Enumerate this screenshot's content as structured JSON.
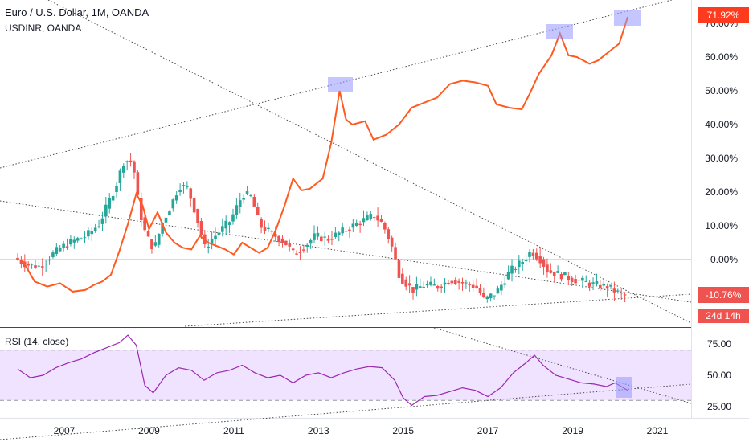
{
  "chart_data": [
    {
      "type": "candlestick",
      "title": "Euro / U.S. Dollar, 1M, OANDA",
      "comparison_series": "USDINR, OANDA",
      "y_axis": "percent",
      "ylim": [
        -20,
        72
      ],
      "y_ticks": [
        "70.00%",
        "60.00%",
        "50.00%",
        "40.00%",
        "30.00%",
        "20.00%",
        "10.00%",
        "0.00%"
      ],
      "x_ticks": [
        "2007",
        "2009",
        "2011",
        "2013",
        "2015",
        "2017",
        "2019",
        "2021"
      ],
      "eurusd_pct": [
        [
          2005.9,
          0.5
        ],
        [
          2006.2,
          -1.5
        ],
        [
          2006.5,
          -2.0
        ],
        [
          2006.8,
          1.5
        ],
        [
          2007.0,
          3.5
        ],
        [
          2007.3,
          5.5
        ],
        [
          2007.6,
          7.0
        ],
        [
          2007.9,
          10.5
        ],
        [
          2008.1,
          16.0
        ],
        [
          2008.3,
          22.0
        ],
        [
          2008.5,
          29.5
        ],
        [
          2008.7,
          29.0
        ],
        [
          2008.85,
          15.0
        ],
        [
          2009.0,
          7.5
        ],
        [
          2009.2,
          3.0
        ],
        [
          2009.4,
          11.0
        ],
        [
          2009.6,
          16.0
        ],
        [
          2009.8,
          22.0
        ],
        [
          2010.0,
          21.0
        ],
        [
          2010.2,
          13.0
        ],
        [
          2010.4,
          3.5
        ],
        [
          2010.6,
          6.5
        ],
        [
          2010.8,
          9.0
        ],
        [
          2011.0,
          11.5
        ],
        [
          2011.3,
          19.5
        ],
        [
          2011.5,
          18.5
        ],
        [
          2011.7,
          10.0
        ],
        [
          2012.0,
          7.5
        ],
        [
          2012.3,
          5.0
        ],
        [
          2012.5,
          1.5
        ],
        [
          2012.8,
          4.5
        ],
        [
          2013.0,
          7.0
        ],
        [
          2013.3,
          6.0
        ],
        [
          2013.6,
          8.0
        ],
        [
          2013.9,
          10.0
        ],
        [
          2014.2,
          12.0
        ],
        [
          2014.4,
          13.0
        ],
        [
          2014.6,
          10.5
        ],
        [
          2014.8,
          4.5
        ],
        [
          2015.0,
          -5.0
        ],
        [
          2015.3,
          -9.0
        ],
        [
          2015.6,
          -7.5
        ],
        [
          2015.9,
          -8.0
        ],
        [
          2016.2,
          -6.0
        ],
        [
          2016.5,
          -7.0
        ],
        [
          2016.8,
          -8.0
        ],
        [
          2017.0,
          -12.0
        ],
        [
          2017.3,
          -9.5
        ],
        [
          2017.6,
          -3.5
        ],
        [
          2017.9,
          -0.5
        ],
        [
          2018.1,
          2.5
        ],
        [
          2018.3,
          0.5
        ],
        [
          2018.5,
          -3.5
        ],
        [
          2018.8,
          -4.5
        ],
        [
          2019.0,
          -5.5
        ],
        [
          2019.3,
          -6.5
        ],
        [
          2019.6,
          -7.5
        ],
        [
          2019.9,
          -8.0
        ],
        [
          2020.1,
          -9.5
        ],
        [
          2020.3,
          -10.76
        ]
      ],
      "usdinr_pct": [
        [
          2006.0,
          0
        ],
        [
          2006.3,
          -6.5
        ],
        [
          2006.6,
          -8.0
        ],
        [
          2006.9,
          -7.0
        ],
        [
          2007.2,
          -9.5
        ],
        [
          2007.5,
          -9.0
        ],
        [
          2007.7,
          -7.5
        ],
        [
          2007.9,
          -6.5
        ],
        [
          2008.1,
          -4.5
        ],
        [
          2008.3,
          2.5
        ],
        [
          2008.5,
          10.5
        ],
        [
          2008.7,
          19.5
        ],
        [
          2008.85,
          16.0
        ],
        [
          2009.0,
          9.0
        ],
        [
          2009.2,
          14.0
        ],
        [
          2009.4,
          8.0
        ],
        [
          2009.6,
          5.0
        ],
        [
          2009.8,
          3.5
        ],
        [
          2010.0,
          3.0
        ],
        [
          2010.2,
          7.0
        ],
        [
          2010.4,
          5.0
        ],
        [
          2010.6,
          4.0
        ],
        [
          2010.8,
          3.0
        ],
        [
          2011.0,
          1.5
        ],
        [
          2011.2,
          5.0
        ],
        [
          2011.4,
          3.5
        ],
        [
          2011.6,
          2.0
        ],
        [
          2011.8,
          3.5
        ],
        [
          2012.0,
          9.0
        ],
        [
          2012.2,
          16.0
        ],
        [
          2012.4,
          24.0
        ],
        [
          2012.6,
          20.5
        ],
        [
          2012.8,
          21.0
        ],
        [
          2013.1,
          24.0
        ],
        [
          2013.3,
          34.5
        ],
        [
          2013.5,
          50.0
        ],
        [
          2013.65,
          41.5
        ],
        [
          2013.8,
          40.0
        ],
        [
          2014.1,
          41.0
        ],
        [
          2014.3,
          35.5
        ],
        [
          2014.6,
          37.0
        ],
        [
          2014.9,
          40.0
        ],
        [
          2015.2,
          45.0
        ],
        [
          2015.5,
          46.5
        ],
        [
          2015.8,
          48.0
        ],
        [
          2016.1,
          52.0
        ],
        [
          2016.4,
          53.0
        ],
        [
          2016.7,
          52.5
        ],
        [
          2017.0,
          51.5
        ],
        [
          2017.2,
          46.0
        ],
        [
          2017.5,
          45.0
        ],
        [
          2017.8,
          44.5
        ],
        [
          2018.0,
          49.5
        ],
        [
          2018.2,
          55.0
        ],
        [
          2018.5,
          60.5
        ],
        [
          2018.7,
          67.0
        ],
        [
          2018.9,
          60.5
        ],
        [
          2019.1,
          60.0
        ],
        [
          2019.4,
          58.0
        ],
        [
          2019.6,
          59.0
        ],
        [
          2019.9,
          62.0
        ],
        [
          2020.1,
          64.0
        ],
        [
          2020.3,
          71.92
        ]
      ],
      "price_labels": [
        "71.92%",
        "-10.76%"
      ],
      "countdown_label": "24d 14h",
      "colors": {
        "up": "#26a69a",
        "down": "#ef5350",
        "usdinr": "#f23645",
        "usdinr_line": "#ff5a1f",
        "highlight": "#9598ff"
      }
    },
    {
      "type": "line",
      "title": "RSI (14, close)",
      "ylim": [
        20,
        88
      ],
      "y_ticks": [
        "75.00",
        "50.00",
        "25.00"
      ],
      "band": [
        30,
        70
      ],
      "values": [
        [
          2005.9,
          55
        ],
        [
          2006.2,
          48
        ],
        [
          2006.5,
          50
        ],
        [
          2006.8,
          56
        ],
        [
          2007.1,
          60
        ],
        [
          2007.4,
          63
        ],
        [
          2007.7,
          68
        ],
        [
          2008.0,
          72
        ],
        [
          2008.3,
          76
        ],
        [
          2008.5,
          82
        ],
        [
          2008.7,
          74
        ],
        [
          2008.9,
          42
        ],
        [
          2009.1,
          36
        ],
        [
          2009.4,
          50
        ],
        [
          2009.7,
          56
        ],
        [
          2010.0,
          54
        ],
        [
          2010.3,
          46
        ],
        [
          2010.6,
          52
        ],
        [
          2010.9,
          54
        ],
        [
          2011.2,
          58
        ],
        [
          2011.5,
          52
        ],
        [
          2011.8,
          48
        ],
        [
          2012.1,
          50
        ],
        [
          2012.4,
          44
        ],
        [
          2012.7,
          50
        ],
        [
          2013.0,
          52
        ],
        [
          2013.3,
          48
        ],
        [
          2013.6,
          52
        ],
        [
          2013.9,
          55
        ],
        [
          2014.2,
          57
        ],
        [
          2014.5,
          56
        ],
        [
          2014.8,
          46
        ],
        [
          2015.0,
          32
        ],
        [
          2015.2,
          26
        ],
        [
          2015.5,
          33
        ],
        [
          2015.8,
          34
        ],
        [
          2016.1,
          37
        ],
        [
          2016.4,
          40
        ],
        [
          2016.7,
          38
        ],
        [
          2017.0,
          33
        ],
        [
          2017.3,
          40
        ],
        [
          2017.6,
          52
        ],
        [
          2017.9,
          60
        ],
        [
          2018.1,
          66
        ],
        [
          2018.3,
          58
        ],
        [
          2018.6,
          50
        ],
        [
          2018.9,
          47
        ],
        [
          2019.2,
          44
        ],
        [
          2019.5,
          43
        ],
        [
          2019.8,
          41
        ],
        [
          2020.0,
          44
        ],
        [
          2020.2,
          40
        ],
        [
          2020.3,
          38
        ]
      ],
      "color": "#9c27b0",
      "band_fill": "#f0e3ff"
    }
  ]
}
